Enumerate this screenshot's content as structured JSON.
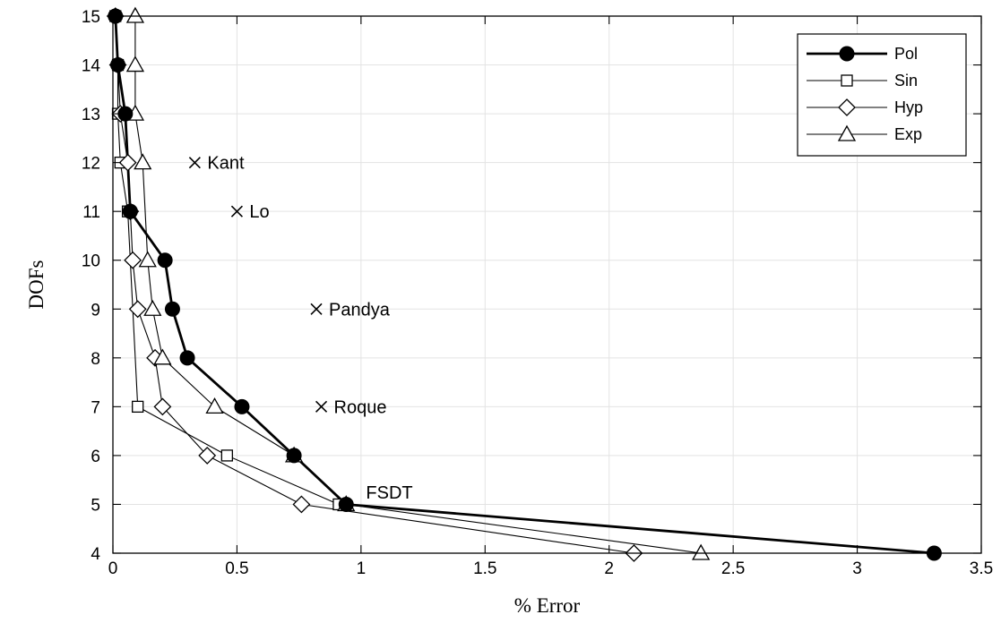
{
  "chart_data": {
    "type": "line",
    "xlabel": "% Error",
    "ylabel": "DOFs",
    "xlim": [
      0,
      3.5
    ],
    "ylim": [
      4,
      15
    ],
    "xticks": [
      0,
      0.5,
      1,
      1.5,
      2,
      2.5,
      3,
      3.5
    ],
    "xtick_labels": [
      "0",
      "0.5",
      "1",
      "1.5",
      "2",
      "2.5",
      "3",
      "3.5"
    ],
    "yticks": [
      4,
      5,
      6,
      7,
      8,
      9,
      10,
      11,
      12,
      13,
      14,
      15
    ],
    "ytick_labels": [
      "4",
      "5",
      "6",
      "7",
      "8",
      "9",
      "10",
      "11",
      "12",
      "13",
      "14",
      "15"
    ],
    "grid": true,
    "legend_position": "top-right",
    "series": [
      {
        "name": "Pol",
        "marker": "filled-circle",
        "color": "#000000",
        "points": [
          [
            3.31,
            4
          ],
          [
            0.94,
            5
          ],
          [
            0.73,
            6
          ],
          [
            0.52,
            7
          ],
          [
            0.3,
            8
          ],
          [
            0.24,
            9
          ],
          [
            0.21,
            10
          ],
          [
            0.07,
            11
          ],
          [
            0.05,
            13
          ],
          [
            0.02,
            14
          ],
          [
            0.01,
            15
          ]
        ]
      },
      {
        "name": "Sin",
        "marker": "square",
        "color": "#000000",
        "points": [
          [
            0.91,
            5
          ],
          [
            0.46,
            6
          ],
          [
            0.1,
            7
          ],
          [
            0.06,
            11
          ],
          [
            0.03,
            12
          ],
          [
            0.02,
            13
          ],
          [
            0.02,
            14
          ],
          [
            0.01,
            15
          ]
        ]
      },
      {
        "name": "Hyp",
        "marker": "diamond",
        "color": "#000000",
        "points": [
          [
            2.1,
            4
          ],
          [
            0.76,
            5
          ],
          [
            0.38,
            6
          ],
          [
            0.2,
            7
          ],
          [
            0.17,
            8
          ],
          [
            0.1,
            9
          ],
          [
            0.08,
            10
          ],
          [
            0.07,
            11
          ],
          [
            0.06,
            12
          ],
          [
            0.03,
            13
          ],
          [
            0.02,
            14
          ],
          [
            0.01,
            15
          ]
        ]
      },
      {
        "name": "Exp",
        "marker": "triangle",
        "color": "#000000",
        "points": [
          [
            2.37,
            4
          ],
          [
            0.94,
            5
          ],
          [
            0.73,
            6
          ],
          [
            0.41,
            7
          ],
          [
            0.2,
            8
          ],
          [
            0.16,
            9
          ],
          [
            0.14,
            10
          ],
          [
            0.12,
            12
          ],
          [
            0.09,
            13
          ],
          [
            0.09,
            14
          ],
          [
            0.09,
            15
          ]
        ]
      }
    ],
    "annotations": [
      {
        "label": "Kant",
        "x": 0.33,
        "y": 12,
        "marker": "x"
      },
      {
        "label": "Lo",
        "x": 0.5,
        "y": 11,
        "marker": "x"
      },
      {
        "label": "Pandya",
        "x": 0.82,
        "y": 9,
        "marker": "x"
      },
      {
        "label": "Roque",
        "x": 0.84,
        "y": 7,
        "marker": "x"
      },
      {
        "label": "FSDT",
        "x": 1.02,
        "y": 5.25,
        "marker": "none"
      }
    ]
  }
}
